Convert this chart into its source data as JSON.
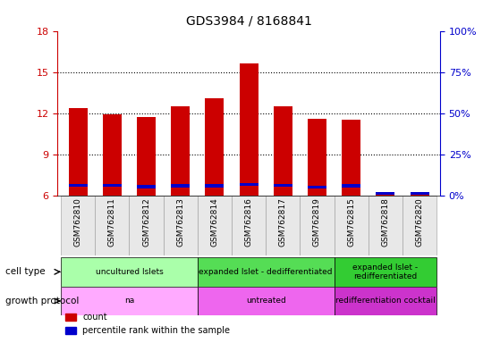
{
  "title": "GDS3984 / 8168841",
  "samples": [
    "GSM762810",
    "GSM762811",
    "GSM762812",
    "GSM762813",
    "GSM762814",
    "GSM762816",
    "GSM762817",
    "GSM762819",
    "GSM762815",
    "GSM762818",
    "GSM762820"
  ],
  "red_values": [
    12.4,
    11.9,
    11.7,
    12.5,
    13.1,
    15.6,
    12.5,
    11.6,
    11.5,
    6.1,
    6.2
  ],
  "blue_values": [
    6.75,
    6.75,
    6.65,
    6.7,
    6.7,
    6.8,
    6.75,
    6.6,
    6.7,
    6.15,
    6.15
  ],
  "ymin": 6,
  "ymax": 18,
  "yticks_left": [
    6,
    9,
    12,
    15,
    18
  ],
  "bar_width": 0.55,
  "red_color": "#cc0000",
  "blue_color": "#0000cc",
  "cell_type_spans": [
    {
      "start": 0,
      "end": 3,
      "label": "uncultured Islets",
      "color": "#aaffaa"
    },
    {
      "start": 4,
      "end": 7,
      "label": "expanded Islet - dedifferentiated",
      "color": "#55dd55"
    },
    {
      "start": 8,
      "end": 10,
      "label": "expanded Islet -\nredifferentiated",
      "color": "#33cc33"
    }
  ],
  "growth_protocol_spans": [
    {
      "start": 0,
      "end": 3,
      "label": "na",
      "color": "#ffaaff"
    },
    {
      "start": 4,
      "end": 7,
      "label": "untreated",
      "color": "#ee66ee"
    },
    {
      "start": 8,
      "end": 10,
      "label": "redifferentiation cocktail",
      "color": "#cc33cc"
    }
  ],
  "tick_color_left": "#cc0000",
  "tick_color_right": "#0000cc",
  "grid_yticks": [
    9,
    12,
    15
  ]
}
